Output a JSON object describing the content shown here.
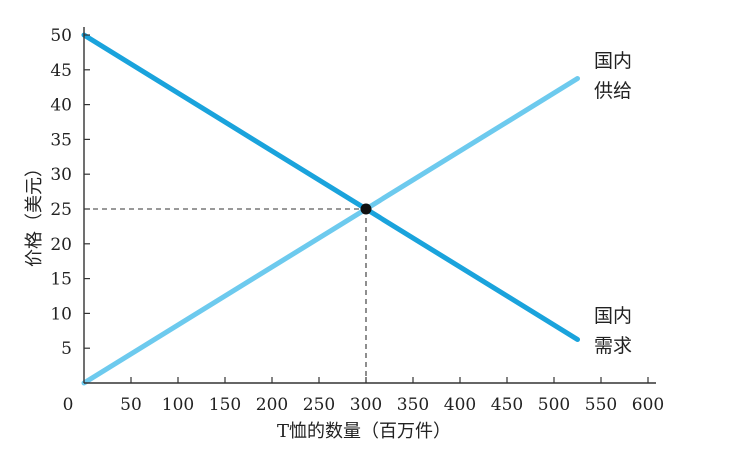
{
  "chart_data": {
    "type": "line",
    "title": "",
    "xlabel": "T恤的数量（百万件）",
    "ylabel": "价格（美元）",
    "xlim": [
      0,
      600
    ],
    "ylim": [
      0,
      50
    ],
    "x_ticks": [
      0,
      50,
      100,
      150,
      200,
      250,
      300,
      350,
      400,
      450,
      500,
      550,
      600
    ],
    "y_ticks": [
      5,
      10,
      15,
      20,
      25,
      30,
      35,
      40,
      45,
      50
    ],
    "grid": false,
    "series": [
      {
        "name_lines": [
          "国内",
          "需求"
        ],
        "color": "#1aa3dc",
        "x": [
          0,
          525
        ],
        "y": [
          50,
          6.25
        ]
      },
      {
        "name_lines": [
          "国内",
          "供给"
        ],
        "color": "#6dcaee",
        "x": [
          0,
          525
        ],
        "y": [
          0,
          43.75
        ]
      }
    ],
    "equilibrium": {
      "x": 300,
      "y": 25
    }
  },
  "colors": {
    "axis": "#333333",
    "guide": "#333333",
    "point": "#111111"
  }
}
